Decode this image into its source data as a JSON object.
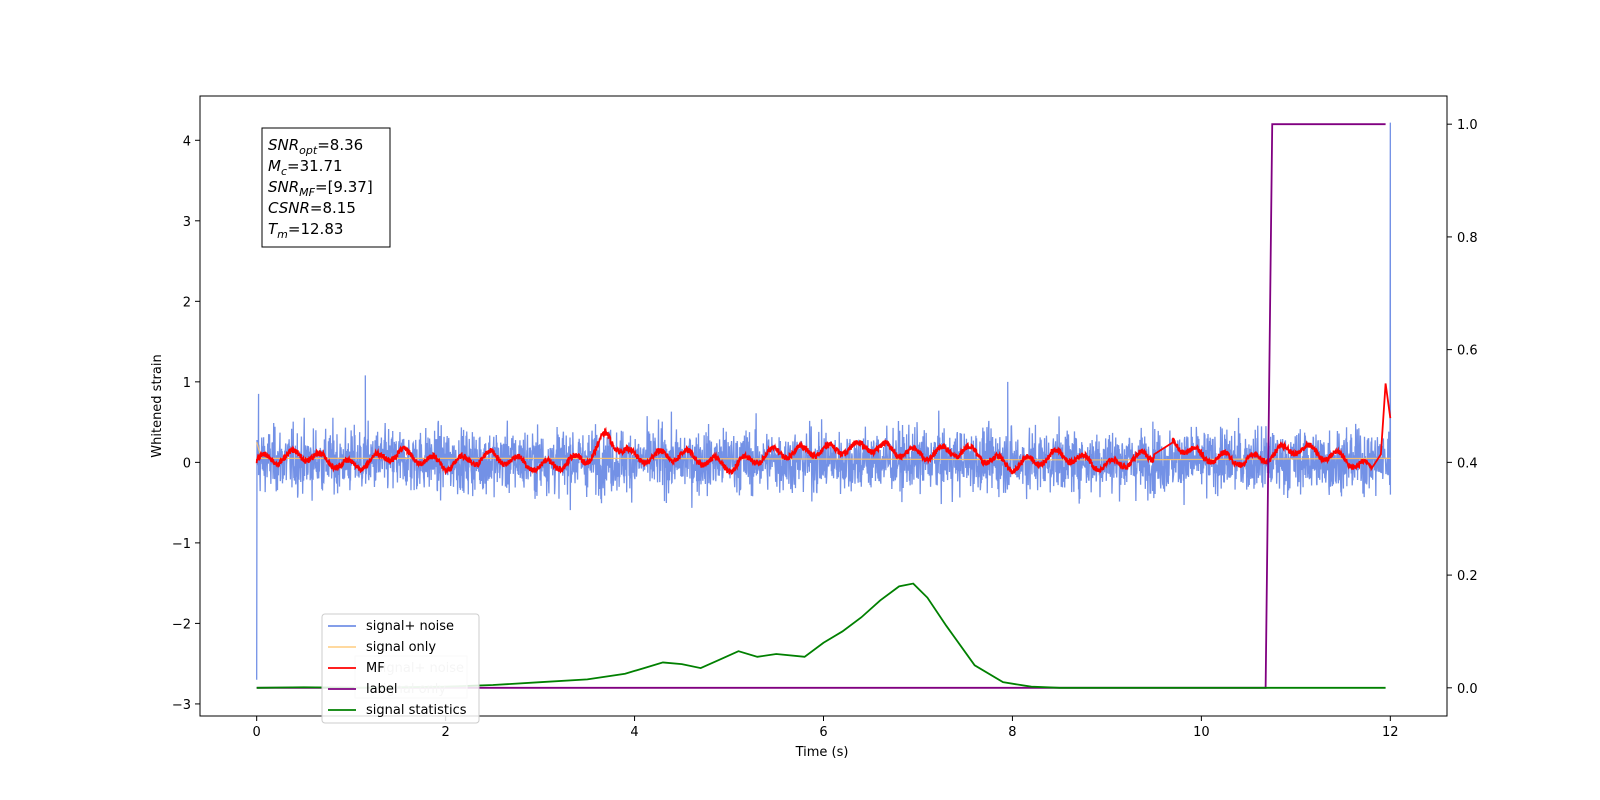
{
  "chart_data": {
    "type": "line",
    "xlabel": "Time (s)",
    "ylabel": "Whitened strain",
    "xlim": [
      -0.6,
      12.6
    ],
    "ylim": [
      -3.15,
      4.55
    ],
    "ylim_right": [
      -0.05,
      1.05
    ],
    "x_ticks": [
      "0",
      "2",
      "4",
      "6",
      "8",
      "10",
      "12"
    ],
    "y_ticks": [
      "4",
      "3",
      "2",
      "1",
      "0",
      "−1",
      "−2",
      "−3"
    ],
    "y_ticks_right": [
      "1.0",
      "0.8",
      "0.6",
      "0.4",
      "0.2",
      "0.0"
    ],
    "grid": false,
    "legend_placement": "lower-left",
    "colors": {
      "signal_noise": "#7391e6",
      "signal_only": "#ffc266",
      "mf": "#ff0000",
      "label": "#800080",
      "signal_statistics": "#008000"
    },
    "annotation": {
      "lines": [
        {
          "base": "SNR",
          "sub": "opt",
          "value": "=8.36"
        },
        {
          "base": "M",
          "sub": "c",
          "value": "=31.71"
        },
        {
          "base": "SNR",
          "sub": "MF",
          "value": "=[9.37]"
        },
        {
          "base": "CSNR",
          "sub": "",
          "value": "=8.15"
        },
        {
          "base": "T",
          "sub": "m",
          "value": "=12.83"
        }
      ]
    },
    "legend": [
      {
        "key": "signal_noise",
        "label": "signal+ noise"
      },
      {
        "key": "signal_only",
        "label": "signal only"
      },
      {
        "key": "mf",
        "label": "MF"
      },
      {
        "key": "label",
        "label": "label"
      },
      {
        "key": "signal_statistics",
        "label": "signal statistics"
      }
    ],
    "ghost_legend": [
      "signal+ noise",
      "signal only"
    ],
    "series": [
      {
        "name": "signal+ noise",
        "axis": "left",
        "x_range": [
          0,
          12
        ],
        "typical_range": [
          -0.55,
          0.6
        ],
        "events": [
          [
            0.0,
            -2.7
          ],
          [
            0.02,
            0.85
          ],
          [
            1.15,
            1.08
          ],
          [
            7.95,
            1.0
          ],
          [
            12.0,
            4.22
          ]
        ]
      },
      {
        "name": "signal only",
        "axis": "left",
        "x": [
          0,
          0.05,
          3.5,
          9,
          11.9,
          12
        ],
        "y": [
          0.25,
          0.05,
          0.05,
          0.03,
          0.05,
          0.05
        ]
      },
      {
        "name": "MF",
        "axis": "left",
        "x": [
          0,
          0.5,
          1.0,
          1.5,
          2.0,
          2.5,
          3.0,
          3.5,
          3.7,
          4.0,
          4.5,
          5.0,
          5.5,
          6.0,
          6.5,
          7.0,
          7.5,
          8.0,
          8.5,
          9.0,
          9.5,
          9.7,
          10.0,
          10.5,
          11.0,
          11.5,
          11.8,
          11.9,
          11.95,
          12.0
        ],
        "y": [
          0.02,
          0.1,
          -0.05,
          0.12,
          -0.03,
          0.08,
          -0.06,
          0.05,
          0.32,
          0.05,
          0.1,
          -0.05,
          0.12,
          0.15,
          0.2,
          0.1,
          0.15,
          -0.05,
          0.1,
          -0.05,
          0.1,
          0.25,
          0.08,
          0.02,
          0.18,
          0.05,
          -0.08,
          0.1,
          0.98,
          0.55
        ]
      },
      {
        "name": "label",
        "axis": "right",
        "x": [
          0,
          10.68,
          10.75,
          11.95
        ],
        "y": [
          0,
          0,
          1,
          1
        ]
      },
      {
        "name": "signal statistics",
        "axis": "right",
        "x": [
          0,
          0.5,
          1.0,
          2.0,
          2.5,
          3.0,
          3.5,
          3.9,
          4.1,
          4.3,
          4.5,
          4.7,
          4.9,
          5.1,
          5.3,
          5.5,
          5.8,
          6.0,
          6.2,
          6.4,
          6.6,
          6.8,
          6.95,
          7.1,
          7.3,
          7.6,
          7.9,
          8.2,
          8.5,
          9.0,
          10.0,
          11.0,
          11.95
        ],
        "y": [
          0.0,
          0.001,
          0.0,
          0.002,
          0.005,
          0.01,
          0.015,
          0.025,
          0.035,
          0.045,
          0.042,
          0.035,
          0.05,
          0.065,
          0.055,
          0.06,
          0.055,
          0.08,
          0.1,
          0.125,
          0.155,
          0.18,
          0.185,
          0.16,
          0.11,
          0.04,
          0.01,
          0.002,
          0.0,
          0.0,
          0.0,
          0.0,
          0.0
        ]
      }
    ]
  }
}
